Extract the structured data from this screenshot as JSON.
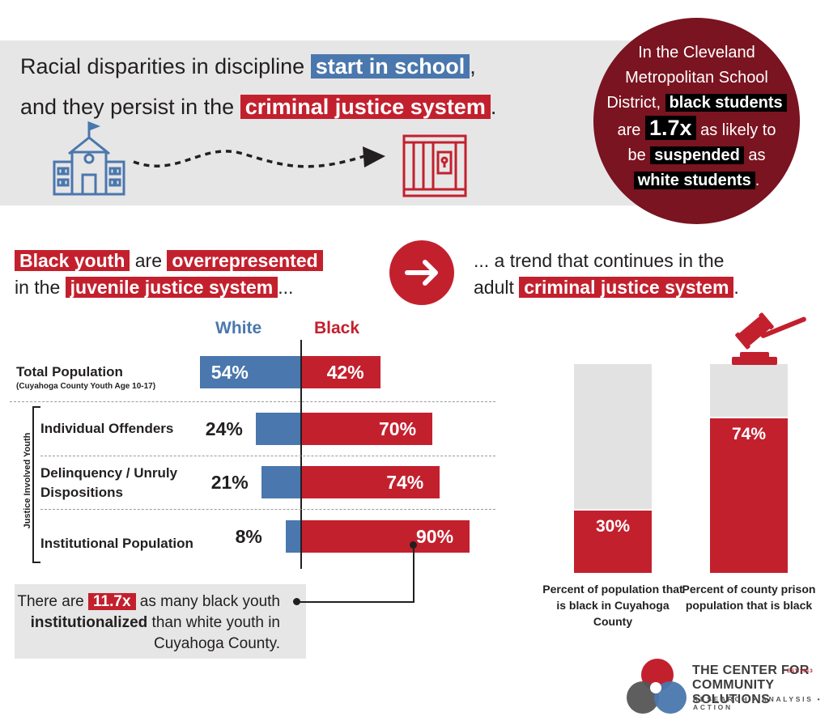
{
  "headline": {
    "line1_pre": "Racial disparities in discipline",
    "line1_hl": "start in school",
    "line1_post": ",",
    "line2_pre": "and they persist in the",
    "line2_hl": "criminal justice system",
    "line2_post": "."
  },
  "callout_circle": {
    "t1": "In the Cleveland",
    "t2": "Metropolitan School",
    "t3": "District,",
    "t4": "black students",
    "t5": "are",
    "t6": "1.7x",
    "t7": "as likely to",
    "t8": "be",
    "t9": "suspended",
    "t10": "as",
    "t11": "white students",
    "t12": "."
  },
  "left_heading": {
    "hl1": "Black youth",
    "mid": "are",
    "hl2": "overrepresented",
    "pre2": "in the",
    "hl3": "juvenile justice system",
    "post": "..."
  },
  "right_heading": {
    "line1": "... a trend that continues in the",
    "pre2": "adult",
    "hl": "criminal justice system",
    "post": "."
  },
  "colors": {
    "white": "#4a77ad",
    "black": "#c3202e",
    "dark_red": "#7a1420",
    "gray": "#e6e6e6"
  },
  "icons": [
    "school-icon",
    "jail-cell-icon",
    "arrow-right-icon",
    "gavel-icon",
    "logo-circles-icon"
  ],
  "chart_data": [
    {
      "type": "bar",
      "orientation": "horizontal-diverging",
      "categories": [
        "Total Population",
        "Individual Offenders",
        "Delinquency / Unruly Dispositions",
        "Institutional Population"
      ],
      "category_sublabel": "(Cuyahoga County Youth Age 10-17)",
      "group_label": "Justice Involved Youth",
      "series": [
        {
          "name": "White",
          "values": [
            54,
            24,
            21,
            8
          ],
          "labels": [
            "54%",
            "24%",
            "21%",
            "8%"
          ]
        },
        {
          "name": "Black",
          "values": [
            42,
            70,
            74,
            90
          ],
          "labels": [
            "42%",
            "70%",
            "74%",
            "90%"
          ]
        }
      ],
      "annotation": {
        "pre": "There are",
        "hl": "11.7x",
        "mid": "as many black youth",
        "bold": "institutionalized",
        "post": "than white youth in Cuyahoga County."
      }
    },
    {
      "type": "bar",
      "orientation": "vertical-stacked-percent",
      "categories": [
        "Percent of population that is black in Cuyahoga County",
        "Percent of county prison population that is black"
      ],
      "values": [
        30,
        74
      ],
      "labels": [
        "30%",
        "74%"
      ],
      "ylim": [
        0,
        100
      ]
    }
  ],
  "logo": {
    "line1": "THE CENTER FOR",
    "line2": "COMMUNITY SOLUTIONS",
    "tagline": "RESEARCH • ANALYSIS • ACTION",
    "est": "EST.1913"
  }
}
